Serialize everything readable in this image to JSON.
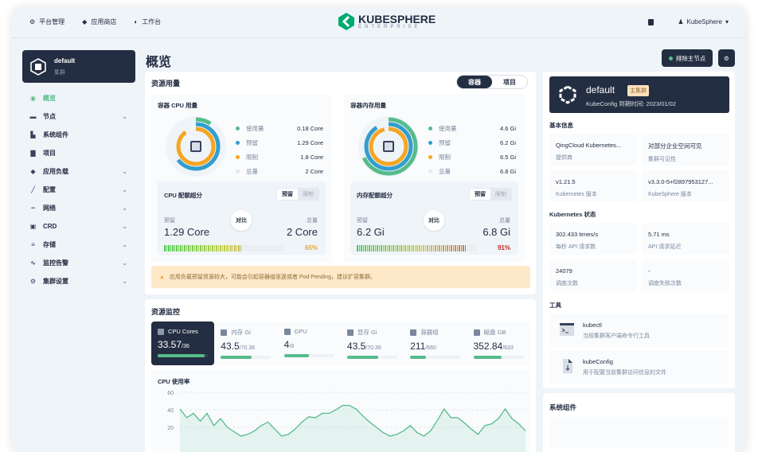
{
  "header": {
    "nav": [
      "平台管理",
      "应用商店",
      "工作台"
    ],
    "logo_main": "KUBESPHERE",
    "logo_sub": "ENTERPRISE",
    "user": "KubeSphere"
  },
  "sidebar": {
    "cluster_name": "default",
    "cluster_type": "集群",
    "items": [
      {
        "label": "概览",
        "icon": "dashboard-icon",
        "active": true,
        "expand": false
      },
      {
        "label": "节点",
        "icon": "nodes-icon",
        "expand": true
      },
      {
        "label": "系统组件",
        "icon": "components-icon",
        "expand": false
      },
      {
        "label": "项目",
        "icon": "project-icon",
        "expand": false
      },
      {
        "label": "应用负载",
        "icon": "appworkload-icon",
        "expand": true
      },
      {
        "label": "配置",
        "icon": "config-icon",
        "expand": true
      },
      {
        "label": "网络",
        "icon": "network-icon",
        "expand": true
      },
      {
        "label": "CRD",
        "icon": "crd-icon",
        "expand": true
      },
      {
        "label": "存储",
        "icon": "storage-icon",
        "expand": true
      },
      {
        "label": "监控告警",
        "icon": "monitor-icon",
        "expand": true
      },
      {
        "label": "集群设置",
        "icon": "settings-icon",
        "expand": true
      }
    ]
  },
  "page": {
    "title": "概览",
    "remove_master_label": "排除主节点"
  },
  "usage": {
    "title": "资源用量",
    "tabs": [
      "容器",
      "项目"
    ],
    "cpu": {
      "title": "容器 CPU 用量",
      "legend": [
        {
          "label": "使用量",
          "value": "0.18 Core",
          "color": "#55bc8a",
          "fraction": 0.09
        },
        {
          "label": "预留",
          "value": "1.29 Core",
          "color": "#329dce",
          "fraction": 0.645
        },
        {
          "label": "限制",
          "value": "1.8 Core",
          "color": "#f5a623",
          "fraction": 0.9
        },
        {
          "label": "总量",
          "value": "2 Core",
          "color": "#e3e9ef"
        }
      ],
      "quota": {
        "title": "CPU 配额超分",
        "toggle": [
          "预留",
          "限制"
        ],
        "left_label": "预留",
        "left_value": "1.29 Core",
        "vs": "对比",
        "right_label": "总量",
        "right_value": "2 Core",
        "percent": "65%",
        "fraction": 0.65,
        "pct_color": "#f5a623"
      }
    },
    "mem": {
      "title": "容器内存用量",
      "legend": [
        {
          "label": "使用量",
          "value": "4.6 Gi",
          "color": "#55bc8a",
          "fraction": 0.68
        },
        {
          "label": "预留",
          "value": "6.2 Gi",
          "color": "#329dce",
          "fraction": 0.91
        },
        {
          "label": "限制",
          "value": "6.5 Gi",
          "color": "#f5a623",
          "fraction": 0.96
        },
        {
          "label": "总量",
          "value": "6.8 Gi",
          "color": "#e3e9ef"
        }
      ],
      "quota": {
        "title": "内存配额超分",
        "toggle": [
          "预留",
          "限制"
        ],
        "left_label": "预留",
        "left_value": "6.2 Gi",
        "vs": "对比",
        "right_label": "总量",
        "right_value": "6.8 Gi",
        "percent": "91%",
        "fraction": 0.91,
        "pct_color": "#ca2621"
      }
    },
    "warning": "应用负载预留资源较大，可能会引起容器组驱逐或者 Pod Pending，建议扩容集群。"
  },
  "monitor": {
    "title": "资源监控",
    "items": [
      {
        "label": "CPU Cores",
        "value": "33.57",
        "total": "/36",
        "fraction": 0.93,
        "icon": "cpu-icon"
      },
      {
        "label": "内存 Gi",
        "value": "43.5",
        "total": "/70.36",
        "fraction": 0.62,
        "icon": "memory-icon"
      },
      {
        "label": "GPU",
        "value": "4",
        "total": "/8",
        "fraction": 0.5,
        "icon": "gpu-icon"
      },
      {
        "label": "显存 Gi",
        "value": "43.5",
        "total": "/70.36",
        "fraction": 0.62,
        "icon": "chip-icon"
      },
      {
        "label": "容器组",
        "value": "211",
        "total": "/660",
        "fraction": 0.32,
        "icon": "pods-icon"
      },
      {
        "label": "磁盘 GB",
        "value": "352.84",
        "total": "/633",
        "fraction": 0.56,
        "icon": "disk-icon"
      }
    ]
  },
  "chart_data": {
    "type": "area",
    "title": "CPU 使用率",
    "yticks": [
      "60",
      "40",
      "20"
    ],
    "ylim": [
      0,
      60
    ],
    "values": [
      41,
      31,
      36,
      27,
      36,
      22,
      30,
      20,
      15,
      10,
      12,
      16,
      22,
      26,
      18,
      10,
      12,
      18,
      26,
      32,
      31,
      36,
      36,
      40,
      45,
      45,
      41,
      33,
      26,
      20,
      14,
      10,
      12,
      16,
      22,
      14,
      10,
      16,
      28,
      41,
      31,
      31,
      25,
      18,
      12,
      22,
      24,
      30,
      41,
      30,
      24,
      16
    ]
  },
  "right": {
    "cluster": {
      "name": "default",
      "badge": "主集群",
      "expire": "KubeConfig 到期时间: 2023/01/02"
    },
    "basic_title": "基本信息",
    "basic": [
      {
        "value": "QingCloud Kubernetes...",
        "label": "提供商"
      },
      {
        "value": "对部分企业空间可见",
        "label": "集群可见性"
      },
      {
        "value": "v1.21.5",
        "label": "Kubernetes 版本"
      },
      {
        "value": "v3.3.0-5+f2897953127...",
        "label": "KubeSphere 版本"
      }
    ],
    "k8s_title": "Kubernetes 状态",
    "k8s": [
      {
        "value": "302.433 times/s",
        "label": "每秒 API 请求数"
      },
      {
        "value": "5.71 ms",
        "label": "API 请求延迟"
      },
      {
        "value": "24079",
        "label": "调度次数"
      },
      {
        "value": "-",
        "label": "调度失败次数"
      }
    ],
    "tools_title": "工具",
    "tools": [
      {
        "name": "kubectl",
        "desc": "当前集群客户端命令行工具"
      },
      {
        "name": "kubeConfig",
        "desc": "用于配置当前集群访问信息的文件"
      }
    ],
    "components_title": "系统组件"
  }
}
